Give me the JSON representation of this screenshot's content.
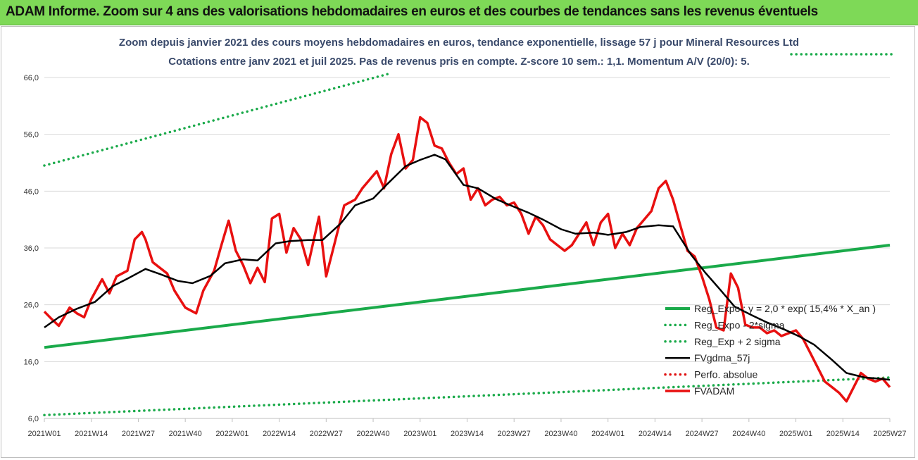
{
  "banner": {
    "title": "ADAM Informe. Zoom sur 4 ans des valorisations hebdomadaires en euros et des courbes de tendances sans les revenus éventuels"
  },
  "chart_data": {
    "type": "line",
    "title": "Zoom depuis janvier 2021 des cours moyens hebdomadaires en euros, tendance exponentielle, lissage 57 j pour Mineral Resources Ltd",
    "subtitle": "Cotations entre janv 2021 et juil 2025. Pas de revenus pris en compte. Z-score 10 sem.: 1,1. Momentum A/V (20/0): 5.",
    "xlabel": "",
    "ylabel": "",
    "ylim": [
      6,
      70
    ],
    "y_ticks": [
      "6,0",
      "16,0",
      "26,0",
      "36,0",
      "46,0",
      "56,0",
      "66,0"
    ],
    "x_ticks": [
      "2021W01",
      "2021W14",
      "2021W27",
      "2021W40",
      "2022W01",
      "2022W14",
      "2022W27",
      "2022W40",
      "2023W01",
      "2023W14",
      "2023W27",
      "2023W40",
      "2024W01",
      "2024W14",
      "2024W27",
      "2024W40",
      "2025W01",
      "2025W14",
      "2025W27"
    ],
    "grid": "horizontal",
    "legend_position": "bottom-right",
    "series": [
      {
        "name": "Reg_Expo : y = 2,0 * exp( 15,4% *  X_an )",
        "color": "#1aaa4a",
        "style": "solid",
        "x": [
          "2021W01",
          "2025W27"
        ],
        "y": [
          18.5,
          36.5
        ]
      },
      {
        "name": "Reg_Expo - 2*sigma",
        "color": "#1aaa4a",
        "style": "dotted",
        "x": [
          "2021W01",
          "2025W27"
        ],
        "y": [
          6.6,
          13.2
        ]
      },
      {
        "name": "Reg_Exp + 2 sigma",
        "color": "#1aaa4a",
        "style": "dotted",
        "x": [
          "2021W01",
          "2022W44"
        ],
        "y": [
          50.5,
          66.6
        ]
      },
      {
        "name": "FVgdma_57j",
        "color": "#000000",
        "style": "solid",
        "x": [
          "2021W01",
          "2021W05",
          "2021W10",
          "2021W15",
          "2021W20",
          "2021W24",
          "2021W29",
          "2021W33",
          "2021W38",
          "2021W42",
          "2021W47",
          "2021W51",
          "2022W04",
          "2022W08",
          "2022W13",
          "2022W17",
          "2022W22",
          "2022W26",
          "2022W31",
          "2022W35",
          "2022W40",
          "2022W44",
          "2022W49",
          "2023W01",
          "2023W05",
          "2023W08",
          "2023W13",
          "2023W17",
          "2023W22",
          "2023W26",
          "2023W31",
          "2023W35",
          "2023W40",
          "2023W44",
          "2023W49",
          "2024W01",
          "2024W06",
          "2024W10",
          "2024W15",
          "2024W19",
          "2024W24",
          "2024W28",
          "2024W32",
          "2024W36",
          "2024W41",
          "2024W45",
          "2024W50",
          "2025W02",
          "2025W06",
          "2025W11",
          "2025W15",
          "2025W20",
          "2025W24",
          "2025W27"
        ],
        "y": [
          22.0,
          23.8,
          25.3,
          26.5,
          29.3,
          30.6,
          32.3,
          31.4,
          30.2,
          29.8,
          31.1,
          33.3,
          34.0,
          33.8,
          36.8,
          37.2,
          37.4,
          37.4,
          40.3,
          43.5,
          44.7,
          47.3,
          50.4,
          51.5,
          52.4,
          51.6,
          47.1,
          46.5,
          44.6,
          43.5,
          42.2,
          41.0,
          39.3,
          38.5,
          38.7,
          38.3,
          38.8,
          39.7,
          40.0,
          39.8,
          34.8,
          31.6,
          28.7,
          25.7,
          24.1,
          22.9,
          21.6,
          20.4,
          19.0,
          16.3,
          14.0,
          13.2,
          13.0,
          12.8
        ]
      },
      {
        "name": "Perfo. absolue",
        "color": "#e01010",
        "style": "dotted",
        "x": [],
        "y": []
      },
      {
        "name": "FVADAM",
        "color": "#e81010",
        "style": "solid",
        "x": [
          "2021W01",
          "2021W03",
          "2021W05",
          "2021W08",
          "2021W10",
          "2021W12",
          "2021W14",
          "2021W17",
          "2021W19",
          "2021W21",
          "2021W24",
          "2021W26",
          "2021W28",
          "2021W29",
          "2021W31",
          "2021W33",
          "2021W35",
          "2021W37",
          "2021W40",
          "2021W43",
          "2021W45",
          "2021W48",
          "2021W50",
          "2021W52",
          "2022W02",
          "2022W04",
          "2022W06",
          "2022W08",
          "2022W10",
          "2022W12",
          "2022W14",
          "2022W16",
          "2022W18",
          "2022W20",
          "2022W22",
          "2022W25",
          "2022W27",
          "2022W29",
          "2022W32",
          "2022W35",
          "2022W37",
          "2022W39",
          "2022W41",
          "2022W43",
          "2022W45",
          "2022W47",
          "2022W49",
          "2022W51",
          "2023W01",
          "2023W03",
          "2023W05",
          "2023W07",
          "2023W09",
          "2023W11",
          "2023W13",
          "2023W15",
          "2023W17",
          "2023W19",
          "2023W21",
          "2023W23",
          "2023W25",
          "2023W27",
          "2023W29",
          "2023W31",
          "2023W33",
          "2023W35",
          "2023W37",
          "2023W39",
          "2023W41",
          "2023W43",
          "2023W45",
          "2023W47",
          "2023W49",
          "2023W51",
          "2024W01",
          "2024W03",
          "2024W05",
          "2024W07",
          "2024W09",
          "2024W11",
          "2024W13",
          "2024W15",
          "2024W17",
          "2024W19",
          "2024W21",
          "2024W23",
          "2024W25",
          "2024W27",
          "2024W29",
          "2024W31",
          "2024W33",
          "2024W35",
          "2024W37",
          "2024W39",
          "2024W41",
          "2024W43",
          "2024W45",
          "2024W47",
          "2024W49",
          "2024W51",
          "2025W01",
          "2025W03",
          "2025W05",
          "2025W07",
          "2025W09",
          "2025W11",
          "2025W13",
          "2025W15",
          "2025W17",
          "2025W19",
          "2025W21",
          "2025W23",
          "2025W25",
          "2025W27"
        ],
        "y": [
          24.8,
          23.5,
          22.3,
          25.5,
          24.5,
          23.8,
          27.0,
          30.5,
          28.0,
          31.0,
          32.0,
          37.5,
          38.8,
          37.5,
          33.5,
          32.5,
          31.5,
          28.5,
          25.5,
          24.5,
          28.5,
          32.0,
          36.5,
          40.8,
          35.5,
          33.0,
          29.8,
          32.5,
          30.0,
          41.2,
          42.0,
          35.2,
          39.5,
          37.5,
          33.0,
          41.5,
          31.0,
          36.0,
          43.5,
          44.5,
          46.5,
          48.0,
          49.5,
          46.5,
          52.5,
          56.0,
          50.0,
          51.5,
          59.0,
          58.0,
          54.0,
          53.5,
          51.0,
          49.0,
          50.0,
          44.5,
          46.5,
          43.5,
          44.5,
          45.0,
          43.5,
          44.0,
          42.0,
          38.5,
          41.5,
          40.0,
          37.5,
          36.5,
          35.5,
          36.5,
          38.5,
          40.5,
          36.5,
          40.5,
          42.0,
          36.0,
          38.5,
          36.5,
          39.5,
          41.0,
          42.5,
          46.5,
          47.8,
          44.5,
          40.0,
          35.5,
          34.5,
          31.0,
          27.0,
          22.0,
          21.5,
          31.5,
          29.0,
          22.5,
          22.0,
          22.0,
          21.0,
          21.5,
          20.5,
          21.0,
          21.5,
          20.0,
          17.5,
          15.0,
          12.5,
          11.5,
          10.5,
          9.0,
          11.5,
          14.0,
          13.0,
          12.5,
          13.0,
          11.5
        ]
      }
    ]
  },
  "legend": {
    "items": [
      "Reg_Expo : y = 2,0 * exp( 15,4% *  X_an )",
      "Reg_Expo - 2*sigma",
      "Reg_Exp + 2 sigma",
      "FVgdma_57j",
      "Perfo. absolue",
      "FVADAM"
    ]
  }
}
